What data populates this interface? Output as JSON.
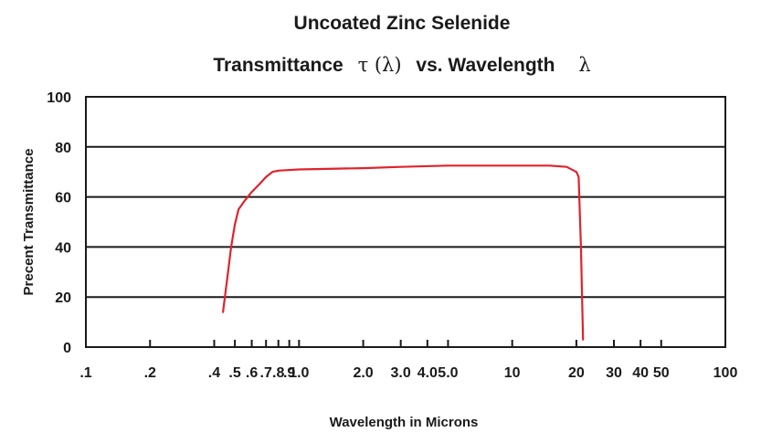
{
  "chart_data": {
    "type": "line",
    "title": "Uncoated Zinc Selenide",
    "subtitle": {
      "part1": "Transmittance",
      "symbol1": "τ (λ)",
      "part2": "vs. Wavelength",
      "symbol2": "λ"
    },
    "xlabel": "Wavelength in Microns",
    "ylabel": "Precent Transmittance",
    "x_scale": "log",
    "xlim": [
      0.1,
      100
    ],
    "ylim": [
      0,
      100
    ],
    "grid": "horizontal",
    "x_ticks": [
      {
        "value": 0.1,
        "label": ".1"
      },
      {
        "value": 0.2,
        "label": ".2"
      },
      {
        "value": 0.4,
        "label": ".4"
      },
      {
        "value": 0.5,
        "label": ".5"
      },
      {
        "value": 0.6,
        "label": ".6"
      },
      {
        "value": 0.7,
        "label": ".7"
      },
      {
        "value": 0.8,
        "label": ".8"
      },
      {
        "value": 0.9,
        "label": ".9"
      },
      {
        "value": 1.0,
        "label": "1.0"
      },
      {
        "value": 2.0,
        "label": "2.0"
      },
      {
        "value": 3.0,
        "label": "3.0"
      },
      {
        "value": 4.0,
        "label": "4.0"
      },
      {
        "value": 5.0,
        "label": "5.0"
      },
      {
        "value": 10,
        "label": "10"
      },
      {
        "value": 20,
        "label": "20"
      },
      {
        "value": 30,
        "label": "30"
      },
      {
        "value": 40,
        "label": "40"
      },
      {
        "value": 50,
        "label": "50"
      },
      {
        "value": 100,
        "label": "100"
      }
    ],
    "y_ticks": [
      {
        "value": 0,
        "label": "0"
      },
      {
        "value": 20,
        "label": "20"
      },
      {
        "value": 40,
        "label": "40"
      },
      {
        "value": 60,
        "label": "60"
      },
      {
        "value": 80,
        "label": "80"
      },
      {
        "value": 100,
        "label": "100"
      }
    ],
    "series": [
      {
        "color": "#e0232d",
        "x": [
          0.44,
          0.46,
          0.48,
          0.5,
          0.52,
          0.55,
          0.6,
          0.65,
          0.7,
          0.75,
          0.8,
          1.0,
          2.0,
          3.0,
          5.0,
          10,
          15,
          18,
          20,
          20.5,
          21,
          21.5
        ],
        "y": [
          14,
          27,
          40,
          49,
          55,
          58,
          62,
          65,
          68,
          70,
          70.5,
          71,
          71.5,
          72,
          72.5,
          72.5,
          72.5,
          72,
          70,
          68,
          40,
          3
        ]
      }
    ]
  }
}
